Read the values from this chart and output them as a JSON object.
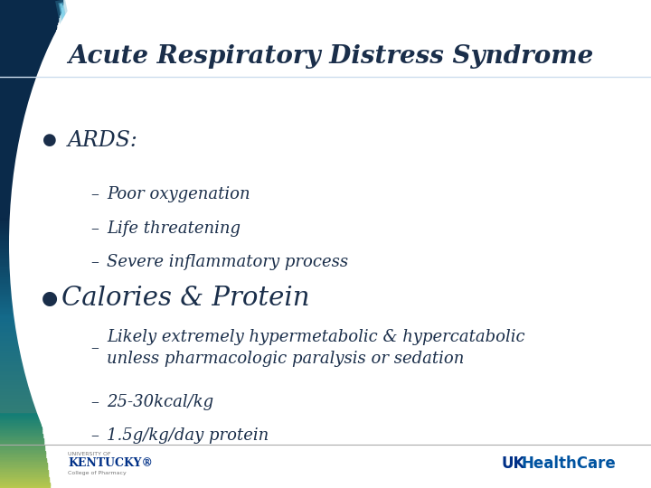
{
  "title": "Acute Respiratory Distress Syndrome",
  "title_color": "#1a2e4a",
  "title_fontsize": 20,
  "bg_color": "#ffffff",
  "bullet1": "ARDS:",
  "bullet1_fontsize": 17,
  "bullet1_color": "#1a2e4a",
  "sub1": [
    "Poor oxygenation",
    "Life threatening",
    "Severe inflammatory process"
  ],
  "bullet2": "Calories & Protein",
  "bullet2_fontsize": 21,
  "bullet2_color": "#1a2e4a",
  "sub2": [
    "Likely extremely hypermetabolic & hypercatabolic\nunless pharmacologic paralysis or sedation",
    "25-30kcal/kg",
    "1.5g/kg/day protein"
  ],
  "sub_fontsize": 13,
  "sub_color": "#1a2e4a",
  "bullet_dot_color": "#1a2e4a",
  "swoosh_dark": "#0a2a4a",
  "swoosh_teal": "#1a6a8a",
  "swoosh_green": "#b8c84e",
  "footer_color": "#1a2e4a",
  "uk_blue": "#003087",
  "uk_health_blue": "#0053a0"
}
